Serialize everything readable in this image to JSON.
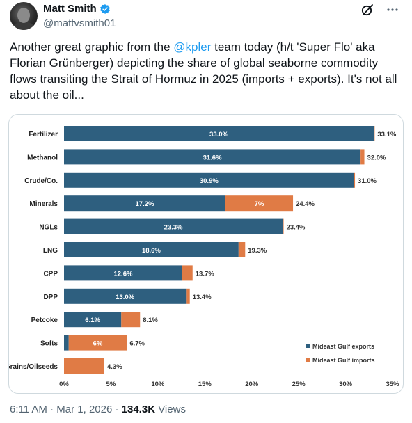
{
  "author": {
    "name": "Matt Smith",
    "handle": "@mattvsmith01"
  },
  "tweet": {
    "text_before": "Another great graphic from the ",
    "mention": "@kpler",
    "text_after": " team today (h/t 'Super Flo' aka Florian Grünberger) depicting the share of global seaborne commodity flows transiting the Strait of Hormuz in 2025 (imports + exports). It's not all about the oil..."
  },
  "footer": {
    "time": "6:11 AM",
    "sep1": " · ",
    "date": "Mar 1, 2026",
    "sep2": " · ",
    "views_count": "134.3K",
    "views_label": " Views"
  },
  "colors": {
    "exports": "#2e5f7f",
    "imports": "#e07b45",
    "verified": "#1d9bf0"
  },
  "icons": {
    "verified": "verified-badge-icon",
    "grok": "grok-icon",
    "more": "more-options-icon"
  },
  "chart_data": {
    "type": "bar",
    "orientation": "horizontal",
    "stacked": true,
    "categories": [
      "Fertilizer",
      "Methanol",
      "Crude/Co.",
      "Minerals",
      "NGLs",
      "LNG",
      "CPP",
      "DPP",
      "Petcoke",
      "Softs",
      "Grains/Oilseeds"
    ],
    "series": [
      {
        "name": "Mideast Gulf exports",
        "values": [
          33.0,
          31.6,
          30.9,
          17.2,
          23.3,
          18.6,
          12.6,
          13.0,
          6.1,
          0.5,
          0.0
        ]
      },
      {
        "name": "Mideast Gulf imports",
        "values": [
          0.1,
          0.4,
          0.1,
          7.2,
          0.1,
          0.7,
          1.1,
          0.4,
          2.0,
          6.2,
          4.3
        ]
      }
    ],
    "segment_labels": [
      "33.0%",
      "31.6%",
      "30.9%",
      "17.2%",
      "7%",
      "23.3%",
      "18.6%",
      "12.6%",
      "13.0%",
      "6.1%",
      "6%"
    ],
    "totals": [
      33.1,
      32.0,
      31.0,
      24.4,
      23.4,
      19.3,
      13.7,
      13.4,
      8.1,
      6.7,
      4.3
    ],
    "total_labels": [
      "33.1%",
      "32.0%",
      "31.0%",
      "24.4%",
      "23.4%",
      "19.3%",
      "13.7%",
      "13.4%",
      "8.1%",
      "6.7%",
      "4.3%"
    ],
    "xlim": [
      0,
      35
    ],
    "xticks": [
      "0%",
      "5%",
      "10%",
      "15%",
      "20%",
      "25%",
      "30%",
      "35%"
    ],
    "legend": {
      "position": "bottom-right",
      "entries": [
        "Mideast Gulf exports",
        "Mideast Gulf imports"
      ]
    },
    "grid": false
  }
}
